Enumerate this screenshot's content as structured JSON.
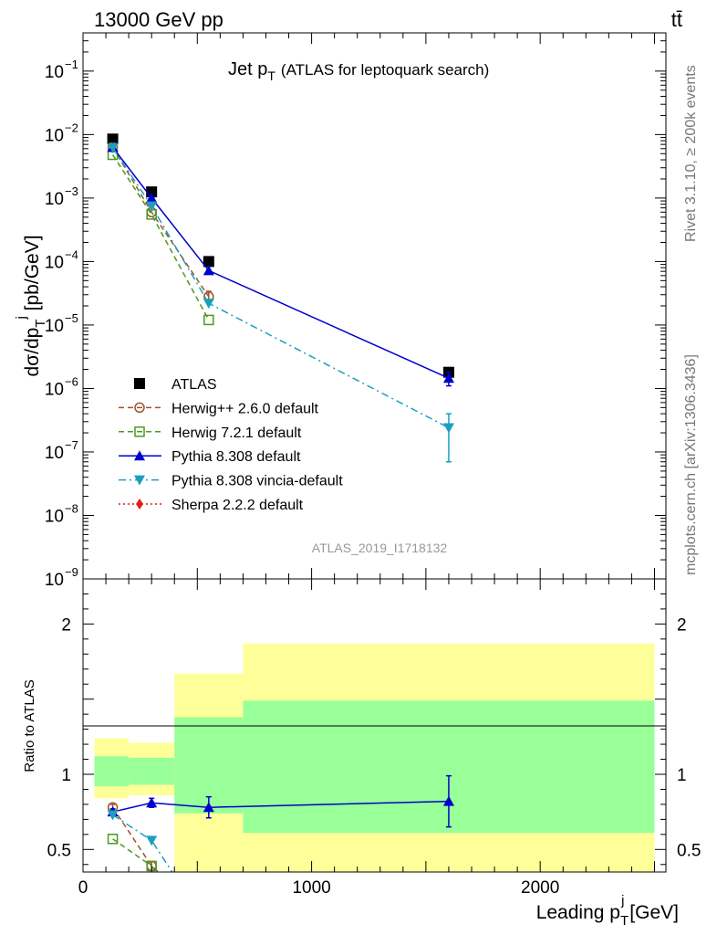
{
  "header": {
    "left": "13000 GeV pp",
    "right": "tt̄"
  },
  "side": {
    "rivet": "Rivet 3.1.10, ≥ 200k events",
    "source": "mcplots.cern.ch [arXiv:1306.3436]"
  },
  "chart_data": [
    {
      "type": "scatter",
      "title": "Jet p_T (ATLAS for leptoquark search)",
      "title_main": "Jet p",
      "title_sub": "T",
      "title_note": "(ATLAS for leptoquark search)",
      "analysis_id": "ATLAS_2019_I1718132",
      "ylabel": "dσ/dp_T^j [pb/GeV]",
      "ylabel_parts": {
        "main": "dσ/dp",
        "sub": "T",
        "sup": "j",
        "tail": " [pb/GeV]"
      },
      "yscale": "log",
      "ylim": [
        1e-09,
        0.4
      ],
      "xlim": [
        0,
        2550
      ],
      "yticks": [
        {
          "v": 1e-09,
          "label": "10",
          "exp": "−9"
        },
        {
          "v": 1e-08,
          "label": "10",
          "exp": "−8"
        },
        {
          "v": 1e-07,
          "label": "10",
          "exp": "−7"
        },
        {
          "v": 1e-06,
          "label": "10",
          "exp": "−6"
        },
        {
          "v": 1e-05,
          "label": "10",
          "exp": "−5"
        },
        {
          "v": 0.0001,
          "label": "10",
          "exp": "−4"
        },
        {
          "v": 0.001,
          "label": "10",
          "exp": "−3"
        },
        {
          "v": 0.01,
          "label": "10",
          "exp": "−2"
        },
        {
          "v": 0.1,
          "label": "10",
          "exp": "−1"
        }
      ],
      "legend_position": "bottom-left",
      "series": [
        {
          "name": "ATLAS",
          "color": "#000000",
          "marker": "square-filled",
          "line": "none",
          "x": [
            130,
            300,
            550,
            1600
          ],
          "y": [
            0.0085,
            0.00125,
            0.0001,
            1.8e-06
          ]
        },
        {
          "name": "Herwig++ 2.6.0 default",
          "color": "#a0522d",
          "marker": "circle-open",
          "line": "dashed",
          "x": [
            130,
            300,
            550
          ],
          "y": [
            0.0063,
            0.0006,
            2.8e-05
          ],
          "yerr": [
            0,
            0,
            6e-06
          ]
        },
        {
          "name": "Herwig 7.2.1 default",
          "color": "#4b9a1e",
          "marker": "square-open",
          "line": "dashed",
          "x": [
            130,
            300,
            550
          ],
          "y": [
            0.0048,
            0.00055,
            1.2e-05
          ]
        },
        {
          "name": "Pythia 8.308 default",
          "color": "#0000cc",
          "marker": "triangle-up",
          "line": "solid",
          "x": [
            130,
            300,
            550,
            1600
          ],
          "y": [
            0.0063,
            0.001,
            7.2e-05,
            1.45e-06
          ],
          "yerr": [
            0,
            0,
            0,
            3.5e-07
          ]
        },
        {
          "name": "Pythia 8.308 vincia-default",
          "color": "#1a9fbf",
          "marker": "triangle-down",
          "line": "dashdot",
          "x": [
            130,
            300,
            550,
            1600
          ],
          "y": [
            0.0062,
            0.00075,
            2.2e-05,
            2.4e-07
          ],
          "yerr_lo": [
            0,
            0,
            0,
            1.7e-07
          ],
          "yerr_hi": [
            0,
            0,
            0,
            1.6e-07
          ]
        },
        {
          "name": "Sherpa 2.2.2 default",
          "color": "#e0201b",
          "marker": "diamond",
          "line": "dotted",
          "x": [],
          "y": []
        }
      ]
    },
    {
      "type": "scatter",
      "ylabel": "Ratio to ATLAS",
      "xlabel": "Leading p_T^j [GeV]",
      "xlabel_parts": {
        "main": "Leading p",
        "sub": "T",
        "sup": "j",
        "tail": " [GeV]"
      },
      "xlim": [
        0,
        2550
      ],
      "ylim": [
        0.35,
        2.3
      ],
      "xticks": [
        0,
        1000,
        2000
      ],
      "yticks": [
        0.5,
        1,
        2
      ],
      "reference_line": 1,
      "bands": [
        {
          "x0": 50,
          "x1": 200,
          "inner": [
            0.92,
            1.12
          ],
          "outer": [
            0.84,
            1.24
          ]
        },
        {
          "x0": 200,
          "x1": 400,
          "inner": [
            0.93,
            1.11
          ],
          "outer": [
            0.86,
            1.21
          ]
        },
        {
          "x0": 400,
          "x1": 700,
          "inner": [
            0.74,
            1.38
          ],
          "outer": [
            0.35,
            1.67
          ]
        },
        {
          "x0": 700,
          "x1": 2500,
          "inner": [
            0.61,
            1.49
          ],
          "outer": [
            0.35,
            1.87
          ]
        }
      ],
      "series": [
        {
          "name": "Herwig++ 2.6.0 default",
          "color": "#a0522d",
          "marker": "circle-open",
          "line": "dashed",
          "x": [
            130,
            300,
            330
          ],
          "y": [
            0.78,
            0.39,
            0.35
          ],
          "yerr": [
            0.02,
            0.03,
            0
          ]
        },
        {
          "name": "Herwig 7.2.1 default",
          "color": "#4b9a1e",
          "marker": "square-open",
          "line": "dashed",
          "x": [
            130,
            300,
            320
          ],
          "y": [
            0.57,
            0.39,
            0.35
          ]
        },
        {
          "name": "Pythia 8.308 default",
          "color": "#0000cc",
          "marker": "triangle-up",
          "line": "solid",
          "x": [
            130,
            300,
            550,
            1600
          ],
          "y": [
            0.75,
            0.81,
            0.78,
            0.82
          ],
          "yerr": [
            0.02,
            0.03,
            0.07,
            0.17
          ]
        },
        {
          "name": "Pythia 8.308 vincia-default",
          "color": "#1a9fbf",
          "marker": "triangle-down",
          "line": "dashdot",
          "x": [
            130,
            300,
            390
          ],
          "y": [
            0.73,
            0.56,
            0.35
          ]
        }
      ]
    }
  ]
}
